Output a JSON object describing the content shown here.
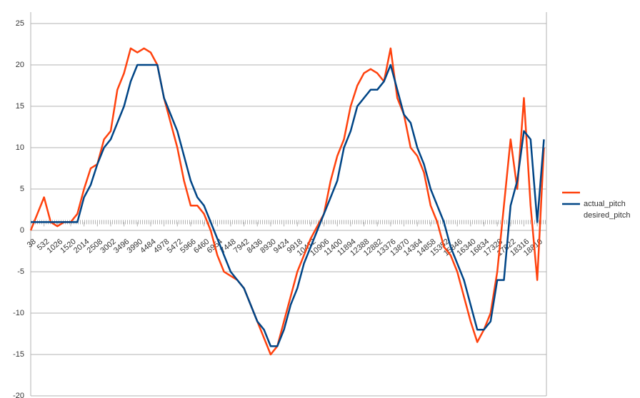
{
  "chart_data": {
    "type": "line",
    "x": [
      38,
      285,
      532,
      779,
      1026,
      1273,
      1520,
      1767,
      2014,
      2261,
      2508,
      2755,
      3002,
      3249,
      3496,
      3743,
      3990,
      4237,
      4484,
      4731,
      4978,
      5225,
      5472,
      5719,
      5966,
      6213,
      6460,
      6707,
      6954,
      7201,
      7448,
      7695,
      7942,
      8189,
      8436,
      8683,
      8930,
      9177,
      9424,
      9671,
      9918,
      10165,
      10412,
      10659,
      10906,
      11153,
      11400,
      11647,
      11894,
      12141,
      12388,
      12635,
      12882,
      13129,
      13376,
      13623,
      13870,
      14117,
      14364,
      14611,
      14858,
      15105,
      15352,
      15599,
      15846,
      16093,
      16340,
      16587,
      16834,
      17081,
      17328,
      17575,
      17822,
      18069,
      18316,
      18563,
      18810,
      19057
    ],
    "series": [
      {
        "name": "actual_pitch",
        "color": "#ff420e",
        "values": [
          0,
          2,
          4,
          1,
          0.5,
          1,
          1,
          2,
          5,
          7.5,
          8,
          11,
          12,
          17,
          19,
          22,
          21.5,
          22,
          21.5,
          20,
          16,
          13,
          10,
          6,
          3,
          3,
          2,
          0,
          -3,
          -5,
          -5.5,
          -6,
          -7,
          -9,
          -11,
          -13,
          -15,
          -14,
          -11,
          -8,
          -5,
          -3,
          -1,
          0.5,
          2,
          6,
          9,
          11,
          15,
          17.5,
          19,
          19.5,
          19,
          18,
          22,
          16,
          14,
          10,
          9,
          7,
          3,
          1,
          -2,
          -3,
          -5,
          -8,
          -11,
          -13.5,
          -12,
          -10,
          -5,
          3,
          11,
          5,
          16,
          3,
          -6,
          10
        ]
      },
      {
        "name": "desired_pitch",
        "color": "#004586",
        "values": [
          1,
          1,
          1,
          1,
          1,
          1,
          1,
          1,
          4,
          5.5,
          8,
          10,
          11,
          13,
          15,
          18,
          20,
          20,
          20,
          20,
          16,
          14,
          12,
          9,
          6,
          4,
          3,
          1,
          -1,
          -3,
          -5,
          -6,
          -7,
          -9,
          -11,
          -12,
          -14,
          -14,
          -12,
          -9,
          -7,
          -4,
          -2,
          0,
          2,
          4,
          6,
          10,
          12,
          15,
          16,
          17,
          17,
          18,
          20,
          17,
          14,
          13,
          10,
          8,
          5,
          3,
          1,
          -2,
          -4,
          -6,
          -9,
          -12,
          -12,
          -11,
          -6,
          -6,
          3,
          6,
          12,
          11,
          1,
          11
        ]
      }
    ],
    "xlim": [
      38,
      19150
    ],
    "xticks": [
      38,
      532,
      1026,
      1520,
      2014,
      2508,
      3002,
      3496,
      3990,
      4484,
      4978,
      5472,
      5966,
      6460,
      6954,
      7448,
      7942,
      8436,
      8930,
      9424,
      9918,
      10412,
      10906,
      11400,
      11894,
      12388,
      12882,
      13376,
      13870,
      14364,
      14858,
      15352,
      15846,
      16340,
      16834,
      17328,
      17822,
      18316,
      18810
    ],
    "ylim": [
      -20,
      25
    ],
    "yticks": [
      -20,
      -15,
      -10,
      -5,
      0,
      5,
      10,
      15,
      20,
      25
    ],
    "x_axis_at": 1,
    "grid": true
  }
}
